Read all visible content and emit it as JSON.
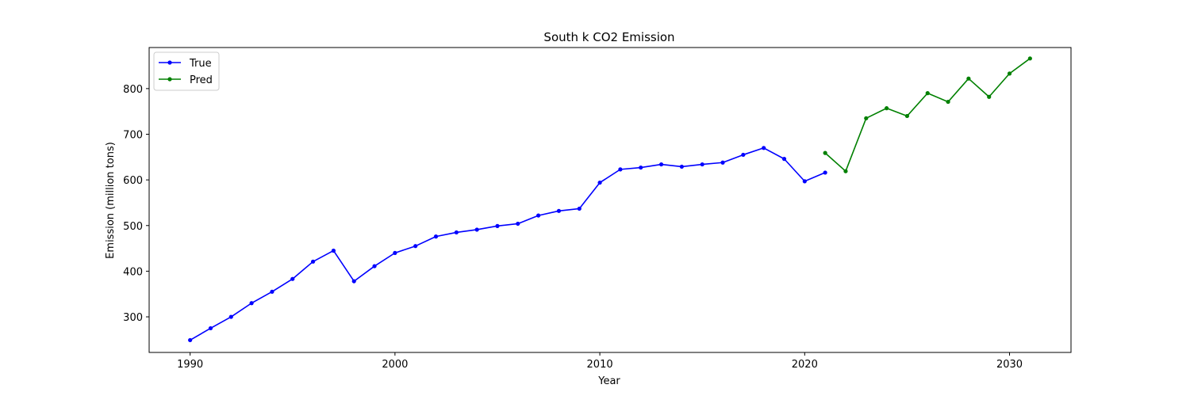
{
  "chart_data": {
    "type": "line",
    "title": "South k CO2 Emission",
    "xlabel": "Year",
    "ylabel": "Emission (million tons)",
    "xlim": [
      1988,
      2033
    ],
    "ylim": [
      222,
      890
    ],
    "xticks": [
      1990,
      2000,
      2010,
      2020,
      2030
    ],
    "yticks": [
      300,
      400,
      500,
      600,
      700,
      800
    ],
    "legend_position": "top-left",
    "series": [
      {
        "name": "True",
        "color": "#0000ff",
        "x": [
          1990,
          1991,
          1992,
          1993,
          1994,
          1995,
          1996,
          1997,
          1998,
          1999,
          2000,
          2001,
          2002,
          2003,
          2004,
          2005,
          2006,
          2007,
          2008,
          2009,
          2010,
          2011,
          2012,
          2013,
          2014,
          2015,
          2016,
          2017,
          2018,
          2019,
          2020,
          2021
        ],
        "values": [
          249,
          275,
          300,
          330,
          355,
          383,
          421,
          445,
          378,
          411,
          440,
          455,
          476,
          485,
          491,
          499,
          504,
          522,
          532,
          537,
          594,
          623,
          627,
          634,
          629,
          634,
          638,
          655,
          670,
          646,
          597,
          616
        ]
      },
      {
        "name": "Pred",
        "color": "#008000",
        "x": [
          2021,
          2022,
          2023,
          2024,
          2025,
          2026,
          2027,
          2028,
          2029,
          2030,
          2031
        ],
        "values": [
          659,
          619,
          735,
          757,
          740,
          790,
          771,
          822,
          782,
          833,
          866
        ]
      }
    ]
  }
}
